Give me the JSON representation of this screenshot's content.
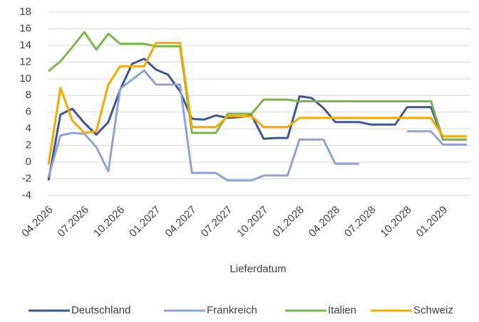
{
  "chart_data": {
    "type": "line",
    "x_label": "Lieferdatum",
    "categories": [
      "04.2026",
      null,
      null,
      "07.2026",
      null,
      null,
      "10.2026",
      null,
      null,
      "01.2027",
      null,
      null,
      "04.2027",
      null,
      null,
      "07.2027",
      null,
      null,
      "10.2027",
      null,
      null,
      "01.2028",
      null,
      null,
      "04.2028",
      null,
      null,
      "07.2028",
      null,
      null,
      "10.2028",
      null,
      null,
      "01.2029",
      null,
      null
    ],
    "ylim": [
      -4,
      18
    ],
    "yticks": [
      -4,
      -2,
      0,
      2,
      4,
      6,
      8,
      10,
      12,
      14,
      16,
      18
    ],
    "grid": true,
    "legend": "bottom",
    "series": [
      {
        "name": "Deutschland",
        "color": "#3f5597",
        "values": [
          -2.2,
          5.7,
          6.4,
          4.7,
          3.3,
          4.8,
          8.7,
          11.8,
          12.4,
          11.1,
          10.5,
          8.5,
          5.2,
          5.1,
          5.6,
          5.3,
          5.4,
          5.6,
          2.8,
          2.9,
          2.9,
          7.9,
          7.7,
          6.5,
          4.8,
          4.8,
          4.8,
          4.5,
          4.5,
          4.5,
          6.6,
          6.6,
          6.6,
          2.7,
          2.7,
          2.7
        ]
      },
      {
        "name": "Frankreich",
        "color": "#8fa2d4",
        "values": [
          -1.8,
          3.2,
          3.5,
          3.4,
          1.8,
          -1.1,
          8.8,
          9.9,
          11.0,
          9.3,
          9.3,
          9.3,
          -1.3,
          -1.3,
          -1.3,
          -2.2,
          -2.2,
          -2.2,
          -1.6,
          -1.6,
          -1.6,
          2.7,
          2.7,
          2.7,
          -0.2,
          -0.2,
          -0.2,
          null,
          null,
          null,
          3.7,
          3.7,
          3.7,
          2.1,
          2.1,
          2.1
        ]
      },
      {
        "name": "Italien",
        "color": "#7ab648",
        "values": [
          10.9,
          12.1,
          13.8,
          15.6,
          13.5,
          15.4,
          14.2,
          14.2,
          14.2,
          13.9,
          13.9,
          13.9,
          3.5,
          3.5,
          3.5,
          5.8,
          5.8,
          5.8,
          7.5,
          7.5,
          7.5,
          7.3,
          7.3,
          7.3,
          7.3,
          7.3,
          7.3,
          7.3,
          7.3,
          7.3,
          7.3,
          7.3,
          7.3,
          2.7,
          2.7,
          2.7
        ]
      },
      {
        "name": "Schweiz",
        "color": "#f5a800",
        "values": [
          -0.3,
          8.9,
          5.0,
          3.5,
          3.7,
          9.3,
          11.5,
          11.5,
          11.5,
          14.3,
          14.3,
          14.3,
          4.2,
          4.2,
          4.2,
          5.5,
          5.5,
          5.5,
          4.2,
          4.2,
          4.2,
          5.3,
          5.3,
          5.3,
          5.3,
          5.3,
          5.3,
          5.3,
          5.3,
          5.3,
          5.3,
          5.3,
          5.3,
          3.1,
          3.1,
          3.1
        ]
      }
    ]
  }
}
